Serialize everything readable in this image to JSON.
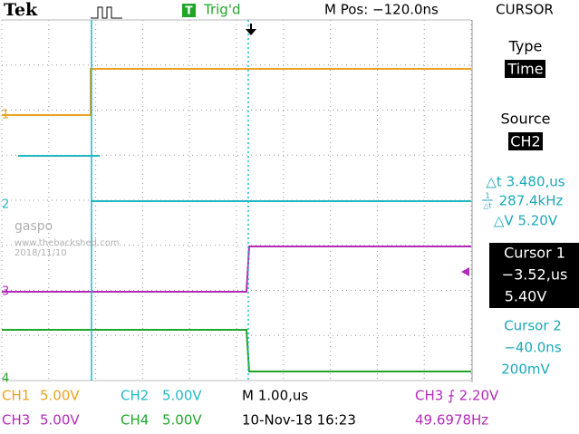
{
  "header": {
    "brand": "Tek",
    "trigger_icon": "T",
    "trigger_status": "Trig'd",
    "position": "M Pos: −120.0ns",
    "menu": "CURSOR"
  },
  "menu": {
    "type_label": "Type",
    "type_value": "Time",
    "source_label": "Source",
    "source_value": "CH2",
    "delta_t": "△t 3.480,us",
    "inverse_top": "1",
    "inverse_bottom": "△t",
    "frequency": "287.4kHz",
    "delta_v": "△V 5.20V",
    "cursor1": {
      "label": "Cursor 1",
      "time": "−3.52,us",
      "voltage": "5.40V"
    },
    "cursor2": {
      "label": "Cursor 2",
      "time": "−40.0ns",
      "voltage": "200mV"
    }
  },
  "watermark": {
    "name": "gaspo",
    "site": "www.thebackshed.com",
    "date": "2018/11/10"
  },
  "channel_markers": [
    "1",
    "2",
    "3",
    "4"
  ],
  "status": {
    "ch1": {
      "channel": "CH1",
      "scale": "5.00V"
    },
    "ch2": {
      "channel": "CH2",
      "scale": "5.00V"
    },
    "ch3": {
      "channel": "CH3",
      "scale": "5.00V"
    },
    "ch4": {
      "channel": "CH4",
      "scale": "5.00V"
    },
    "timebase": "M 1.00,us",
    "trigger": "CH3 ⨍ 2.20V",
    "datetime": "10-Nov-18 16:23",
    "trigger_frequency": "49.6978Hz"
  }
}
